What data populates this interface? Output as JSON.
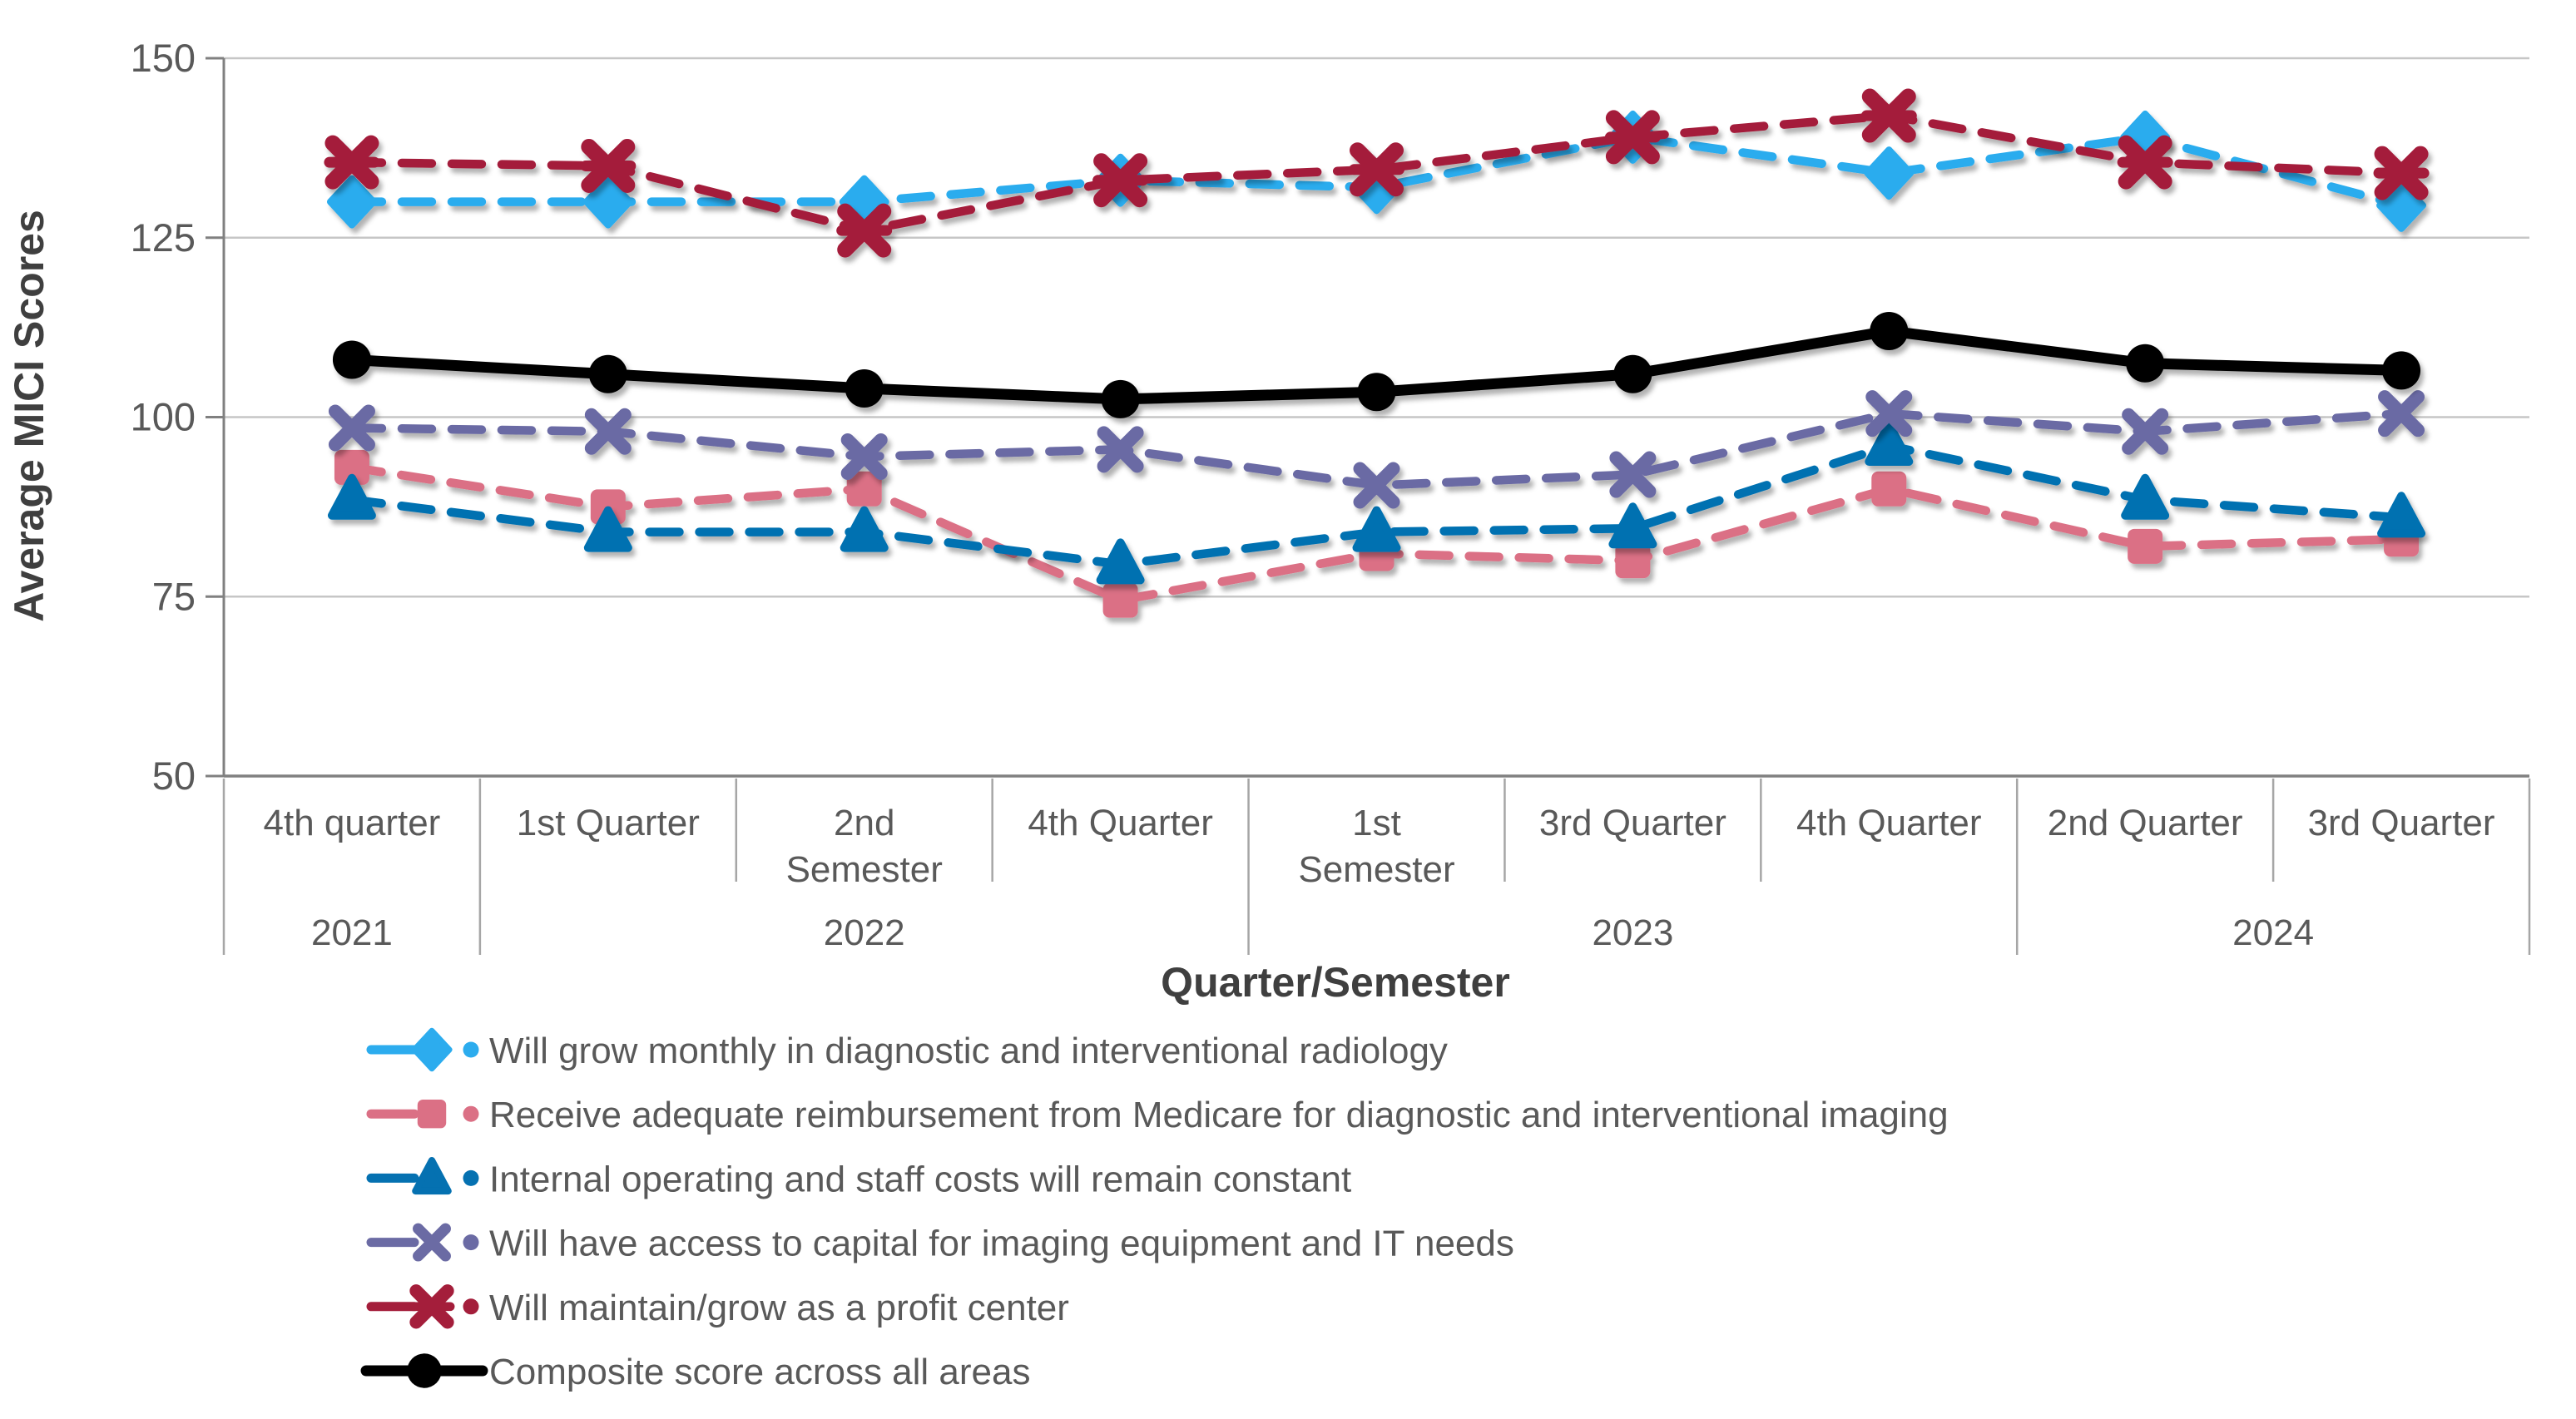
{
  "chart_data": {
    "type": "line",
    "title": "",
    "xlabel": "Quarter/Semester",
    "ylabel": "Average MICI Scores",
    "ylim": [
      50,
      150
    ],
    "yticks": [
      150,
      125,
      100,
      75,
      50
    ],
    "grid": "horizontal",
    "legend_position": "bottom-left",
    "categories": [
      "4th quarter",
      "1st Quarter",
      "2nd Semester",
      "4th Quarter",
      "1st Semester",
      "3rd Quarter",
      "4th Quarter",
      "2nd Quarter",
      "3rd Quarter"
    ],
    "year_groups": [
      {
        "label": "2021",
        "start": 0,
        "end": 1
      },
      {
        "label": "2022",
        "start": 1,
        "end": 4
      },
      {
        "label": "2023",
        "start": 4,
        "end": 7
      },
      {
        "label": "2024",
        "start": 7,
        "end": 9
      }
    ],
    "series": [
      {
        "name": "Will grow monthly in diagnostic and interventional radiology",
        "color": "#2CACEE",
        "marker": "diamond",
        "line": "dashed",
        "values": [
          130,
          130,
          130,
          133,
          132,
          139,
          134,
          139,
          129.5
        ]
      },
      {
        "name": "Receive adequate reimbursement from Medicare for diagnostic and interventional imaging",
        "color": "#DB7085",
        "marker": "square",
        "line": "dashed",
        "values": [
          93,
          87.5,
          90,
          74.5,
          81,
          80,
          90,
          82,
          83
        ]
      },
      {
        "name": "Internal operating and staff costs will remain constant",
        "color": "#0571B1",
        "marker": "triangle",
        "line": "dashed",
        "values": [
          88.5,
          84,
          84,
          79.5,
          84,
          84.5,
          96,
          88.5,
          86
        ]
      },
      {
        "name": "Will have access to capital for imaging equipment and IT needs",
        "color": "#6B6BA4",
        "marker": "x",
        "line": "dashed",
        "values": [
          98.5,
          98,
          94.5,
          95.5,
          90.5,
          92,
          100.5,
          98,
          100.5
        ]
      },
      {
        "name": "Will maintain/grow as a profit center",
        "color": "#A41E3B",
        "marker": "x-bold",
        "line": "dashed",
        "values": [
          135.5,
          135,
          126,
          133,
          134.5,
          139,
          142,
          135.5,
          134
        ]
      },
      {
        "name": "Composite score across all areas",
        "color": "#000000",
        "marker": "circle",
        "line": "solid",
        "values": [
          108,
          106,
          104,
          102.5,
          103.5,
          106,
          112,
          107.5,
          106.5
        ]
      }
    ],
    "colors": {
      "gridline": "#C6C6C6",
      "axis_line": "#808080",
      "separator": "#A6A6A6",
      "text_gray": "#595959",
      "title_gray": "#3F3F3F"
    }
  }
}
